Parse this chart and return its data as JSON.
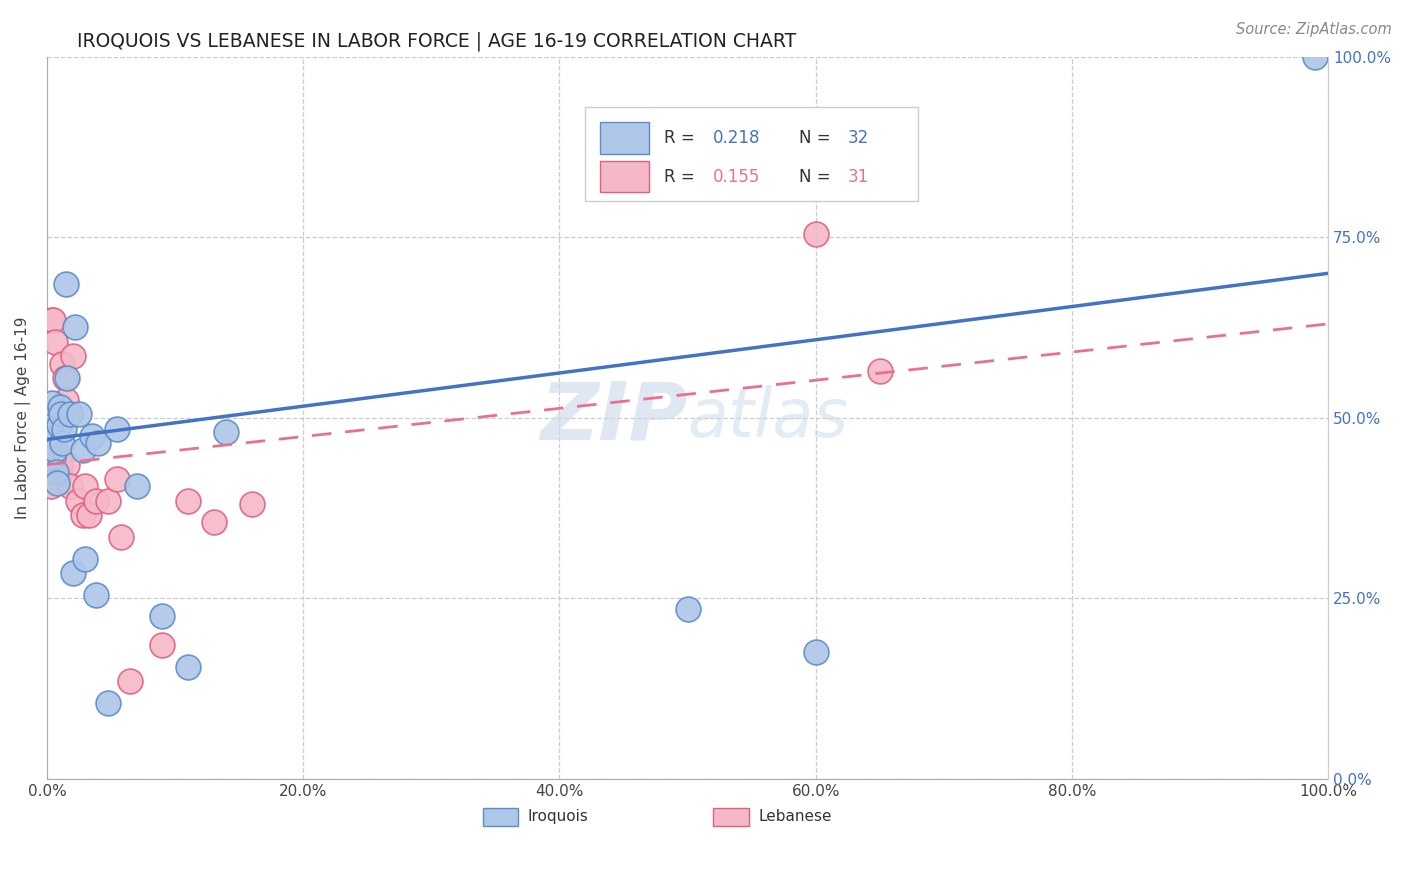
{
  "title": "IROQUOIS VS LEBANESE IN LABOR FORCE | AGE 16-19 CORRELATION CHART",
  "source": "Source: ZipAtlas.com",
  "ylabel": "In Labor Force | Age 16-19",
  "xlim": [
    0,
    1
  ],
  "ylim": [
    0,
    1
  ],
  "xtick_labels": [
    "0.0%",
    "20.0%",
    "40.0%",
    "60.0%",
    "80.0%",
    "100.0%"
  ],
  "ytick_labels_right": [
    "0.0%",
    "25.0%",
    "50.0%",
    "75.0%",
    "100.0%"
  ],
  "ytick_vals": [
    0,
    0.25,
    0.5,
    0.75,
    1.0
  ],
  "xtick_vals": [
    0,
    0.2,
    0.4,
    0.6,
    0.8,
    1.0
  ],
  "iroquois_color": "#aec6e8",
  "lebanese_color": "#f4b8c8",
  "iroquois_edge_color": "#5b8dc8",
  "lebanese_edge_color": "#e06080",
  "iroquois_line_color": "#4472c4",
  "lebanese_line_color": "#e87090",
  "watermark_color": "#c8d8ea",
  "iroquois_x": [
    0.002,
    0.003,
    0.004,
    0.005,
    0.006,
    0.007,
    0.008,
    0.009,
    0.01,
    0.011,
    0.012,
    0.013,
    0.015,
    0.016,
    0.018,
    0.02,
    0.022,
    0.025,
    0.028,
    0.03,
    0.035,
    0.038,
    0.04,
    0.048,
    0.055,
    0.07,
    0.09,
    0.11,
    0.14,
    0.5,
    0.6,
    0.99
  ],
  "iroquois_y": [
    0.475,
    0.505,
    0.52,
    0.445,
    0.455,
    0.425,
    0.41,
    0.49,
    0.515,
    0.505,
    0.465,
    0.485,
    0.685,
    0.555,
    0.505,
    0.285,
    0.625,
    0.505,
    0.455,
    0.305,
    0.475,
    0.255,
    0.465,
    0.105,
    0.485,
    0.405,
    0.225,
    0.155,
    0.48,
    0.235,
    0.175,
    1.0
  ],
  "lebanese_x": [
    0.002,
    0.002,
    0.003,
    0.004,
    0.005,
    0.006,
    0.007,
    0.008,
    0.009,
    0.01,
    0.012,
    0.014,
    0.015,
    0.016,
    0.018,
    0.02,
    0.024,
    0.028,
    0.03,
    0.033,
    0.038,
    0.048,
    0.055,
    0.058,
    0.065,
    0.09,
    0.11,
    0.13,
    0.16,
    0.6,
    0.65
  ],
  "lebanese_y": [
    0.445,
    0.455,
    0.405,
    0.635,
    0.635,
    0.605,
    0.485,
    0.505,
    0.425,
    0.435,
    0.575,
    0.555,
    0.525,
    0.435,
    0.405,
    0.585,
    0.385,
    0.365,
    0.405,
    0.365,
    0.385,
    0.385,
    0.415,
    0.335,
    0.135,
    0.185,
    0.385,
    0.355,
    0.38,
    0.755,
    0.565
  ],
  "blue_line_x0": 0.0,
  "blue_line_y0": 0.47,
  "blue_line_x1": 1.0,
  "blue_line_y1": 0.7,
  "pink_line_x0": 0.0,
  "pink_line_y0": 0.435,
  "pink_line_x1": 1.0,
  "pink_line_y1": 0.63
}
